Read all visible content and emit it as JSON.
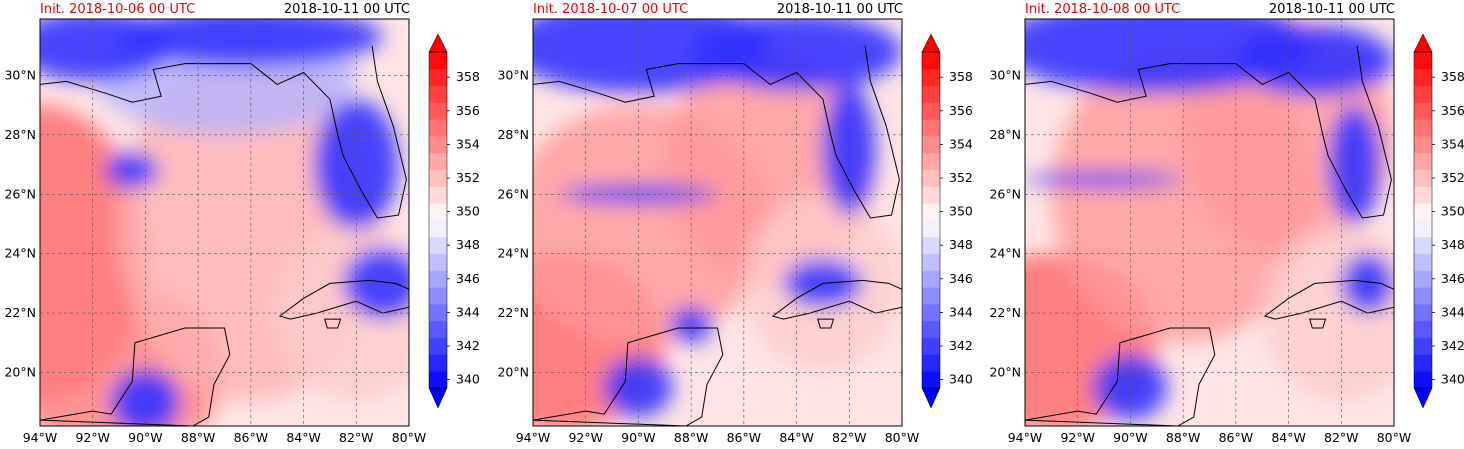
{
  "panels": [
    {
      "init_label": "Init. 2018-10-06 00 UTC",
      "valid_label": "2018-10-11 00 UTC"
    },
    {
      "init_label": "Init. 2018-10-07 00 UTC",
      "valid_label": "2018-10-11 00 UTC"
    },
    {
      "init_label": "Init. 2018-10-08 00 UTC",
      "valid_label": "2018-10-11 00 UTC"
    }
  ],
  "map": {
    "lon_range": [
      -94,
      -80
    ],
    "lat_range": [
      18.2,
      31.9
    ],
    "lon_ticks": [
      "94°W",
      "92°W",
      "90°W",
      "88°W",
      "86°W",
      "84°W",
      "82°W",
      "80°W"
    ],
    "lon_values": [
      -94,
      -92,
      -90,
      -88,
      -86,
      -84,
      -82,
      -80
    ],
    "lat_ticks": [
      "20°N",
      "22°N",
      "24°N",
      "26°N",
      "28°N",
      "30°N"
    ],
    "lat_values": [
      20,
      22,
      24,
      26,
      28,
      30
    ],
    "gridlines": true
  },
  "colorbar": {
    "levels": [
      340,
      341,
      342,
      343,
      344,
      345,
      346,
      347,
      348,
      349,
      350,
      351,
      352,
      353,
      354,
      355,
      356,
      357,
      358,
      359,
      360
    ],
    "tick_labels": [
      "340",
      "342",
      "344",
      "346",
      "348",
      "350",
      "352",
      "354",
      "356",
      "358"
    ],
    "tick_values": [
      340,
      342,
      344,
      346,
      348,
      350,
      352,
      354,
      356,
      358
    ],
    "extend": "both",
    "low_color": "#0000ff",
    "mid_color": "#ffffff",
    "high_color": "#ff0000"
  }
}
